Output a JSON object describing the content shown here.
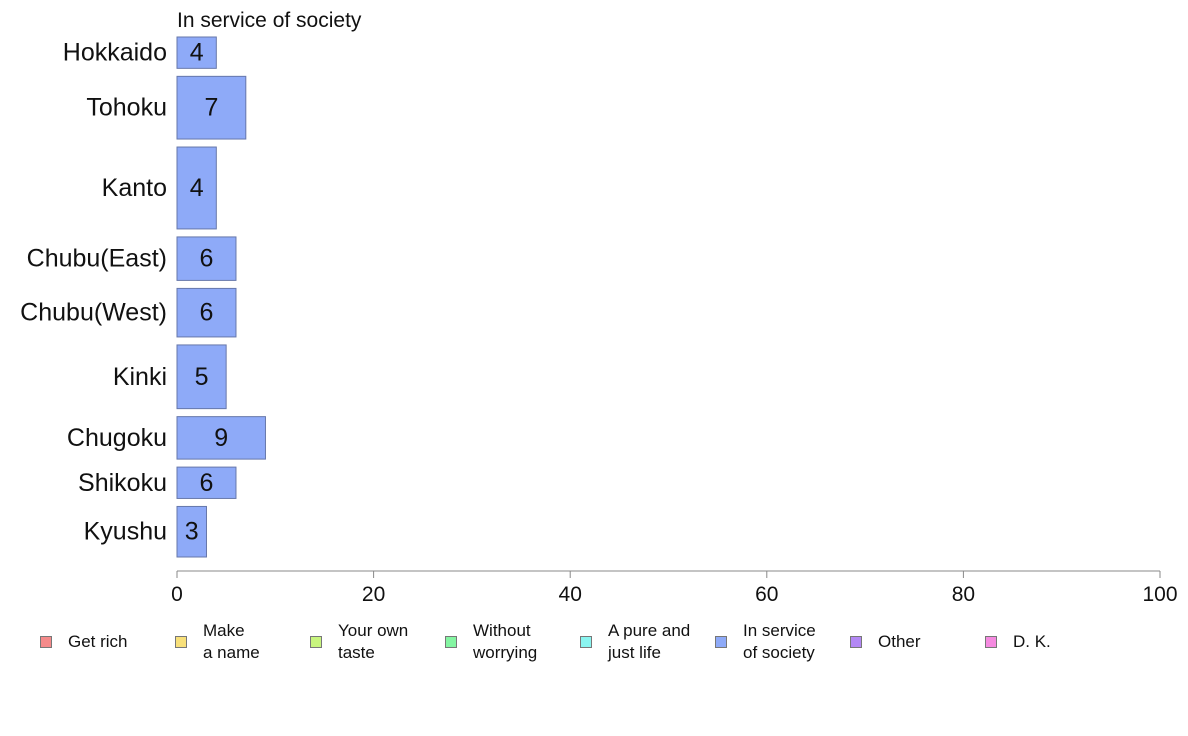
{
  "chart_data": {
    "type": "bar",
    "orientation": "horizontal",
    "title": "In service of society",
    "categories": [
      "Hokkaido",
      "Tohoku",
      "Kanto",
      "Chubu(East)",
      "Chubu(West)",
      "Kinki",
      "Chugoku",
      "Shikoku",
      "Kyushu"
    ],
    "values": [
      4,
      7,
      4,
      6,
      6,
      5,
      9,
      6,
      3
    ],
    "bar_widths": [
      0.62,
      1.24,
      1.62,
      0.86,
      0.96,
      1.26,
      0.84,
      0.62,
      1.0
    ],
    "xlim": [
      0,
      100
    ],
    "xticks": [
      0,
      20,
      40,
      60,
      80,
      100
    ],
    "grid": false,
    "bar_color": "#8eaaf8",
    "bar_edge_color": "#6677aa",
    "legend_position": "bottom",
    "legend": [
      {
        "label": "Get rich",
        "color": "#f58a8a"
      },
      {
        "label": "Make\na name",
        "color": "#f8e07a"
      },
      {
        "label": "Your own\ntaste",
        "color": "#c8f57e"
      },
      {
        "label": "Without\nworrying",
        "color": "#84f5a2"
      },
      {
        "label": "A pure and\njust life",
        "color": "#8af5f0"
      },
      {
        "label": "In service\nof society",
        "color": "#8eaaf8"
      },
      {
        "label": "Other",
        "color": "#b388f5"
      },
      {
        "label": "D. K.",
        "color": "#f58ae0"
      }
    ]
  }
}
